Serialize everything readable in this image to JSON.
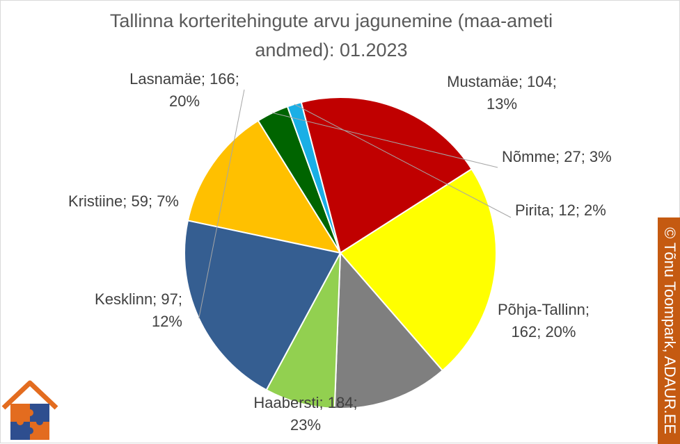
{
  "chart_data": {
    "type": "pie",
    "title_lines": [
      "Tallinna korteritehingute arvu jagunemine (maa-ameti",
      "andmed): 01.2023"
    ],
    "slices": [
      {
        "name": "Mustamäe",
        "value": 104,
        "percent": "13%",
        "color": "#ffc000",
        "label_lines": [
          "Mustamäe; 104;",
          "13%"
        ]
      },
      {
        "name": "Nõmme",
        "value": 27,
        "percent": "3%",
        "color": "#006400",
        "label_lines": [
          "Nõmme; 27; 3%"
        ]
      },
      {
        "name": "Pirita",
        "value": 12,
        "percent": "2%",
        "color": "#1aafe6",
        "label_lines": [
          "Pirita; 12; 2%"
        ]
      },
      {
        "name": "Põhja-Tallinn",
        "value": 162,
        "percent": "20%",
        "color": "#c00000",
        "label_lines": [
          "Põhja-Tallinn;",
          "162; 20%"
        ]
      },
      {
        "name": "Haabersti",
        "value": 184,
        "percent": "23%",
        "color": "#ffff00",
        "label_lines": [
          "Haabersti; 184;",
          "23%"
        ]
      },
      {
        "name": "Kesklinn",
        "value": 97,
        "percent": "12%",
        "color": "#7f7f7f",
        "label_lines": [
          "Kesklinn; 97;",
          "12%"
        ]
      },
      {
        "name": "Kristiine",
        "value": 59,
        "percent": "7%",
        "color": "#92d050",
        "label_lines": [
          "Kristiine; 59; 7%"
        ]
      },
      {
        "name": "Lasnamäe",
        "value": 166,
        "percent": "20%",
        "color": "#355e91",
        "label_lines": [
          "Lasnamäe; 166;",
          "20%"
        ]
      }
    ],
    "legend": "none",
    "data_labels": "outside with leader lines"
  },
  "credit": "© Tõnu Toompark, ADAUR.EE",
  "colors": {
    "title": "#595959",
    "label": "#404040",
    "credit_strip": "#c55a11"
  },
  "logo": {
    "icon": "house-puzzle-logo-icon"
  }
}
